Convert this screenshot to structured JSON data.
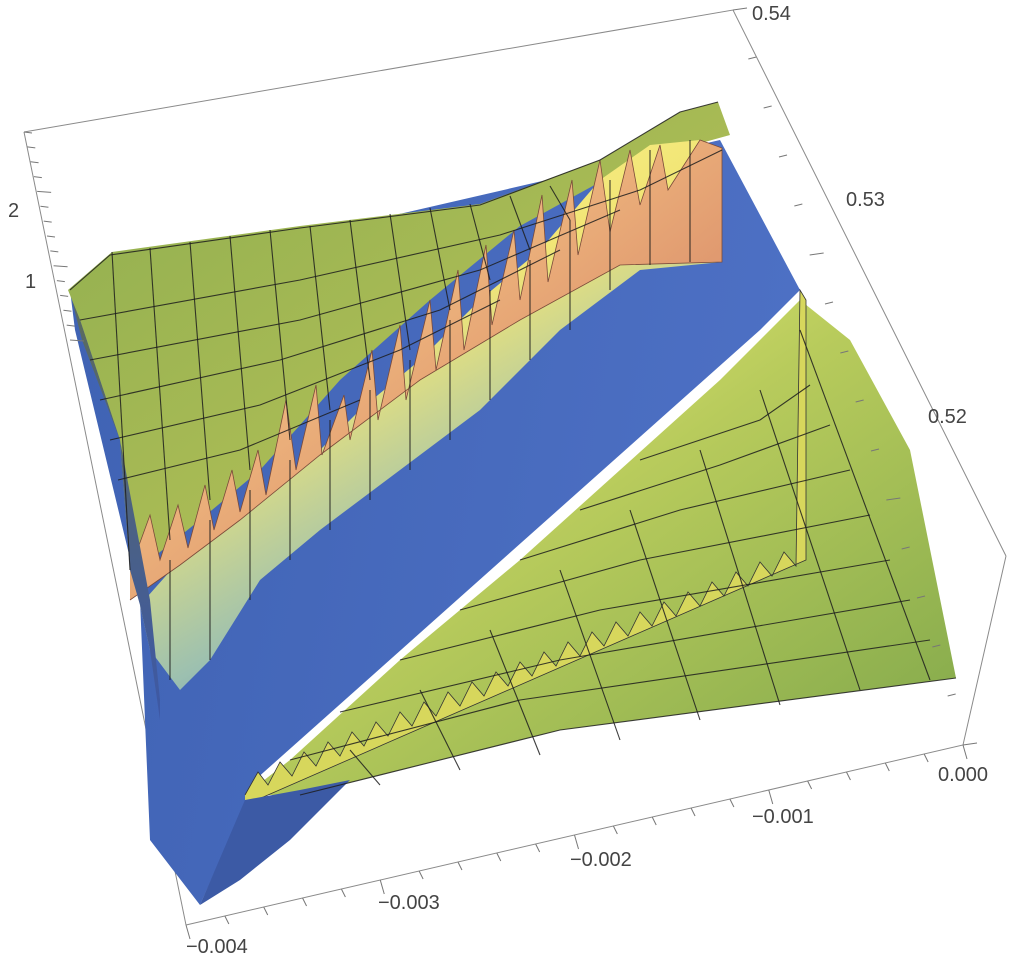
{
  "chart_data": {
    "type": "surface3d",
    "title": "",
    "x_axis": {
      "range": [
        -0.004,
        0.0
      ],
      "ticks": [
        -0.004,
        -0.003,
        -0.002,
        -0.001,
        0.0
      ],
      "tick_labels": [
        "−0.004",
        "−0.003",
        "−0.002",
        "−0.001",
        "0.000"
      ]
    },
    "y_axis": {
      "range": [
        0.51,
        0.54
      ],
      "ticks": [
        0.52,
        0.53,
        0.54
      ],
      "tick_labels": [
        "0.52",
        "0.53",
        "0.54"
      ]
    },
    "z_axis": {
      "range": [
        0,
        2.8
      ],
      "ticks": [
        1,
        2
      ],
      "tick_labels": [
        "1",
        "2"
      ]
    },
    "surface_levels": {
      "plateau_high": 0.9,
      "plateau_low": 0.6,
      "ridge_peak": 2.6,
      "trough": 0.0
    },
    "colors": {
      "low": "#4a6bbf",
      "mid": "#f4f27a",
      "high": "#d8876a",
      "plateau": "#8fb04f",
      "mesh": "#1d1d1d",
      "box": "#8a8a8a"
    },
    "mesh": "on",
    "box": "on"
  }
}
